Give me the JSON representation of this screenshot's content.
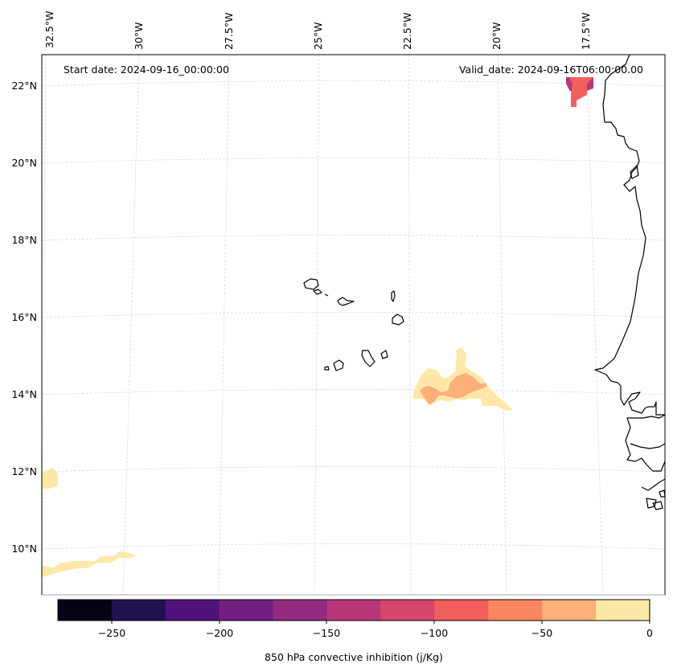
{
  "header": {
    "start_date": "Start date: 2024-09-16_00:00:00",
    "valid_date": "Valid_date: 2024-09-16T06:00:00.00"
  },
  "lon_labels": [
    "32.5°W",
    "30°W",
    "27.5°W",
    "25°W",
    "22.5°W",
    "20°W",
    "17.5°W"
  ],
  "lat_labels": [
    "22°N",
    "20°N",
    "18°N",
    "16°N",
    "14°N",
    "12°N",
    "10°N"
  ],
  "colorbar": {
    "label": "850 hPa convective inhibition (j/Kg)",
    "tick_labels": [
      "−250",
      "−200",
      "−150",
      "−100",
      "−50",
      "0"
    ],
    "levels": [
      -275,
      -250,
      -225,
      -200,
      -175,
      -150,
      -125,
      -100,
      -75,
      -50,
      -25,
      0
    ],
    "colors": [
      "#050417",
      "#221150",
      "#4f127b",
      "#721f81",
      "#932b80",
      "#b73779",
      "#d8456c",
      "#f1605d",
      "#fb8761",
      "#feb078",
      "#fde8a8"
    ]
  },
  "features": {
    "coastline_color": "#000000",
    "gridline_color": "#d9d9d9"
  }
}
